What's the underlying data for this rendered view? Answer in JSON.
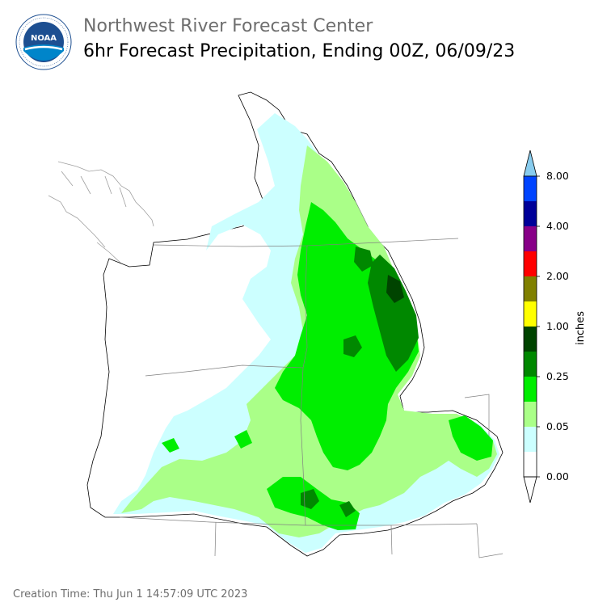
{
  "header": {
    "organization": "Northwest River Forecast Center",
    "product_title": "6hr Forecast Precipitation, Ending 00Z, 06/09/23",
    "logo_text": "NOAA"
  },
  "colorbar": {
    "unit_label": "inches",
    "tick_labels": [
      "0.00",
      "0.05",
      "0.25",
      "1.00",
      "2.00",
      "4.00",
      "8.00"
    ],
    "colors": [
      "#ffffff",
      "#ccffff",
      "#aaff88",
      "#00ee00",
      "#008800",
      "#004400",
      "#ffff00",
      "#808000",
      "#ff0000",
      "#880088",
      "#000099",
      "#0044ff",
      "#88ccee"
    ]
  },
  "map": {
    "region": "Pacific Northwest (Washington, Oregon, Idaho, western Montana)",
    "fill_colors": {
      "trace": "#ccffff",
      "light": "#aaff88",
      "moderate": "#00ee00",
      "heavy": "#008800",
      "very_heavy": "#004400"
    }
  },
  "footer": {
    "creation_time": "Creation Time: Thu Jun 1 14:57:09 UTC 2023"
  }
}
